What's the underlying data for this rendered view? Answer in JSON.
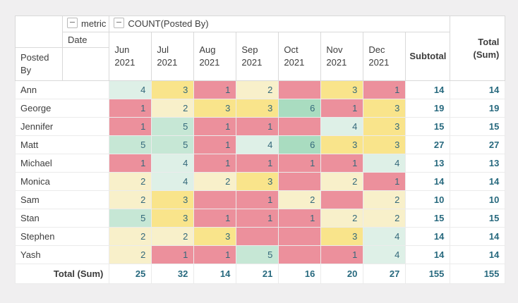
{
  "header": {
    "metric_label": "metric",
    "count_label": "COUNT(Posted By)",
    "date_label": "Date",
    "row_dim_label": "Posted By",
    "subtotal_label": "Subtotal",
    "total_label": "Total (Sum)"
  },
  "grand_total_row_label": "Total (Sum)",
  "chart_data": {
    "type": "heatmap",
    "title": "COUNT(Posted By) by Date per Posted By (pivot table)",
    "columns": [
      "Jun 2021",
      "Jul 2021",
      "Aug 2021",
      "Sep 2021",
      "Oct 2021",
      "Nov 2021",
      "Dec 2021"
    ],
    "rows": [
      {
        "name": "Ann",
        "values": [
          4,
          3,
          1,
          2,
          null,
          3,
          1
        ],
        "subtotal": 14,
        "total": 14
      },
      {
        "name": "George",
        "values": [
          1,
          2,
          3,
          3,
          6,
          1,
          3
        ],
        "subtotal": 19,
        "total": 19
      },
      {
        "name": "Jennifer",
        "values": [
          1,
          5,
          1,
          1,
          null,
          4,
          3
        ],
        "subtotal": 15,
        "total": 15
      },
      {
        "name": "Matt",
        "values": [
          5,
          5,
          1,
          4,
          6,
          3,
          3
        ],
        "subtotal": 27,
        "total": 27
      },
      {
        "name": "Michael",
        "values": [
          1,
          4,
          1,
          1,
          1,
          1,
          4
        ],
        "subtotal": 13,
        "total": 13
      },
      {
        "name": "Monica",
        "values": [
          2,
          4,
          2,
          3,
          null,
          2,
          1
        ],
        "subtotal": 14,
        "total": 14
      },
      {
        "name": "Sam",
        "values": [
          2,
          3,
          null,
          1,
          2,
          null,
          2
        ],
        "subtotal": 10,
        "total": 10
      },
      {
        "name": "Stan",
        "values": [
          5,
          3,
          1,
          1,
          1,
          2,
          2
        ],
        "subtotal": 15,
        "total": 15
      },
      {
        "name": "Stephen",
        "values": [
          2,
          2,
          3,
          null,
          null,
          3,
          4
        ],
        "subtotal": 14,
        "total": 14
      },
      {
        "name": "Yash",
        "values": [
          2,
          1,
          1,
          5,
          null,
          1,
          4
        ],
        "subtotal": 14,
        "total": 14
      }
    ],
    "column_totals": {
      "values": [
        25,
        32,
        14,
        21,
        16,
        20,
        27
      ],
      "subtotal": 155,
      "total": 155
    },
    "value_range": [
      1,
      6
    ],
    "legend": "none",
    "grid": "on"
  },
  "heat_colors": {
    "empty": "#ec909c",
    "1": "#ec909c",
    "2": "#f8f0ca",
    "3": "#f9e48b",
    "4": "#def0e7",
    "5": "#c6e7d5",
    "6": "#a9dcc0"
  },
  "colors": {
    "page_bg": "#f0eff0",
    "value_text": "#33687a",
    "total_text": "#27697e",
    "header_text": "#3d3d3d",
    "border_light": "#ebebeb",
    "border_dark": "#d9d9d9"
  }
}
